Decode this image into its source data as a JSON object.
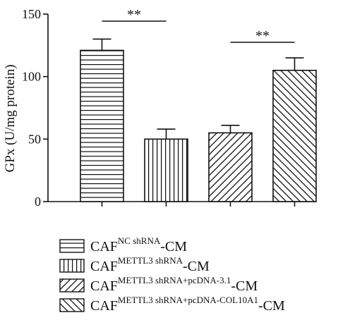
{
  "chart_data": {
    "type": "bar",
    "ylabel": "GPx (U/mg protein)",
    "ylim": [
      0,
      150
    ],
    "yticks": [
      0,
      50,
      100,
      150
    ],
    "bars": [
      {
        "base": "CAF",
        "sup": "NC shRNA",
        "suffix": "-CM",
        "value": 121,
        "error": 9,
        "pattern": "horizontal"
      },
      {
        "base": "CAF",
        "sup": "METTL3 shRNA",
        "suffix": "-CM",
        "value": 50,
        "error": 8,
        "pattern": "vertical"
      },
      {
        "base": "CAF",
        "sup": "METTL3 shRNA+pcDNA-3.1",
        "suffix": "-CM",
        "value": 55,
        "error": 6,
        "pattern": "diag-up"
      },
      {
        "base": "CAF",
        "sup": "METTL3 shRNA+pcDNA-COL10A1",
        "suffix": "-CM",
        "value": 105,
        "error": 10,
        "pattern": "diag-down"
      }
    ],
    "significance": [
      {
        "from": 0,
        "to": 1,
        "label": "**"
      },
      {
        "from": 2,
        "to": 3,
        "label": "**"
      }
    ]
  }
}
